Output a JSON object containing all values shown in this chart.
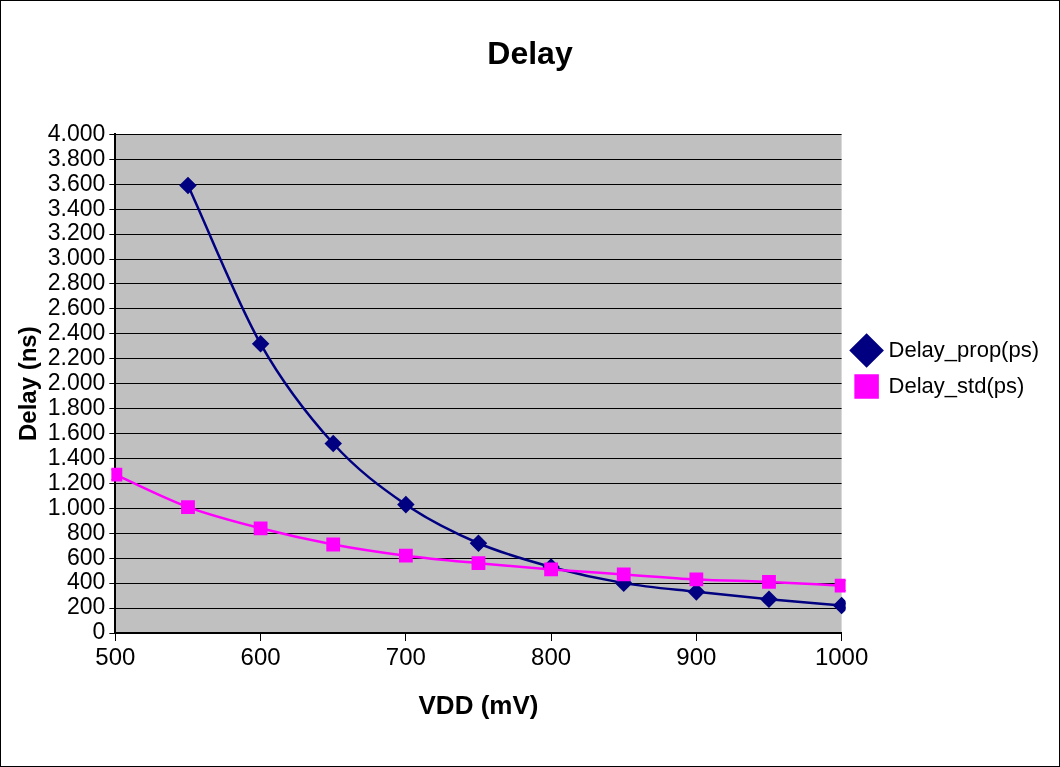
{
  "chart_data": {
    "type": "line",
    "title": "Delay",
    "xlabel": "VDD (mV)",
    "ylabel": "Delay (ns)",
    "x": [
      500,
      550,
      600,
      650,
      700,
      750,
      800,
      850,
      900,
      950,
      1000
    ],
    "series": [
      {
        "name": "Delay_prop(ps)",
        "color": "#000080",
        "marker": "diamond",
        "values": [
          null,
          3590,
          2320,
          1520,
          1030,
          720,
          530,
          400,
          330,
          270,
          220
        ]
      },
      {
        "name": "Delay_std(ps)",
        "color": "#ff00ff",
        "marker": "square",
        "values": [
          1270,
          1010,
          840,
          710,
          620,
          560,
          510,
          470,
          430,
          410,
          380
        ]
      }
    ],
    "xlim": [
      500,
      1000
    ],
    "xticks": [
      500,
      600,
      700,
      800,
      900,
      1000
    ],
    "ylim": [
      0,
      4000
    ],
    "yticks": [
      0,
      200,
      400,
      600,
      800,
      {
        "value": 1000,
        "label": "1.000"
      },
      {
        "value": 1200,
        "label": "1.200"
      },
      {
        "value": 1400,
        "label": "1.400"
      },
      {
        "value": 1600,
        "label": "1.600"
      },
      {
        "value": 1800,
        "label": "1.800"
      },
      {
        "value": 2000,
        "label": "2.000"
      },
      {
        "value": 2200,
        "label": "2.200"
      },
      {
        "value": 2400,
        "label": "2.400"
      },
      {
        "value": 2600,
        "label": "2.600"
      },
      {
        "value": 2800,
        "label": "2.800"
      },
      {
        "value": 3000,
        "label": "3.000"
      },
      {
        "value": 3200,
        "label": "3.200"
      },
      {
        "value": 3400,
        "label": "3.400"
      },
      {
        "value": 3600,
        "label": "3.600"
      },
      {
        "value": 3800,
        "label": "3.800"
      },
      {
        "value": 4000,
        "label": "4.000"
      }
    ],
    "grid": "y",
    "legend": "right",
    "line_style": "solid"
  }
}
